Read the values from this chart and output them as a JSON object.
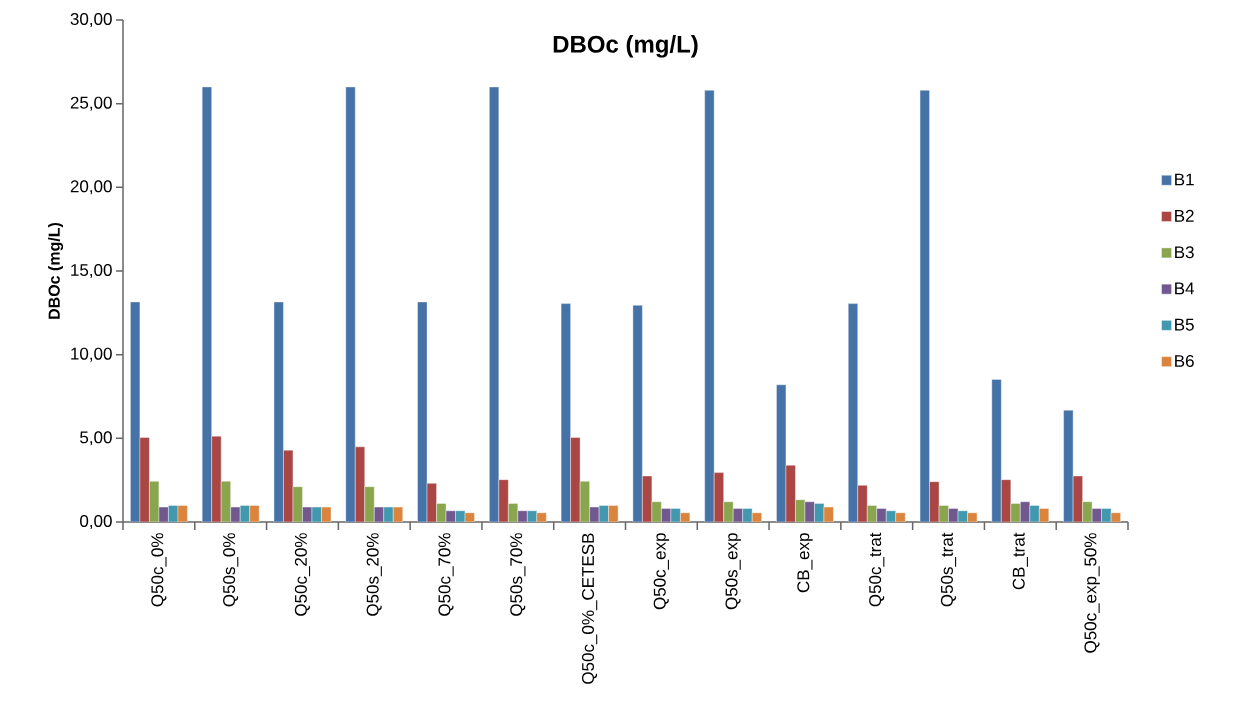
{
  "chart_data": {
    "type": "bar",
    "title": "DBOc (mg/L)",
    "ylabel": "DBOc (mg/L)",
    "categories": [
      "Q50c_0%",
      "Q50s_0%",
      "Q50c_20%",
      "Q50s_20%",
      "Q50c_70%",
      "Q50s_70%",
      "Q50c_0%_CETESB",
      "Q50c_exp",
      "Q50s_exp",
      "CB_exp",
      "Q50c_trat",
      "Q50s_trat",
      "CB_trat",
      "Q50c_exp_50%"
    ],
    "series": [
      {
        "name": "B1",
        "color": "#4572a7",
        "values": [
          13.15,
          26.0,
          13.15,
          26.0,
          13.15,
          26.0,
          13.05,
          12.95,
          25.8,
          8.2,
          13.05,
          25.8,
          8.52,
          6.68
        ]
      },
      {
        "name": "B2",
        "color": "#aa4643",
        "values": [
          5.05,
          5.13,
          4.29,
          4.49,
          2.31,
          2.53,
          5.05,
          2.75,
          2.95,
          3.39,
          2.19,
          2.41,
          2.53,
          2.75
        ]
      },
      {
        "name": "B3",
        "color": "#89a54e",
        "values": [
          2.43,
          2.43,
          2.11,
          2.11,
          1.11,
          1.11,
          2.43,
          1.21,
          1.21,
          1.33,
          0.99,
          0.99,
          1.11,
          1.21
        ]
      },
      {
        "name": "B4",
        "color": "#71588f",
        "values": [
          0.89,
          0.89,
          0.89,
          0.89,
          0.67,
          0.67,
          0.89,
          0.81,
          0.81,
          1.21,
          0.81,
          0.81,
          1.21,
          0.81
        ]
      },
      {
        "name": "B5",
        "color": "#4198af",
        "values": [
          0.99,
          0.99,
          0.89,
          0.89,
          0.67,
          0.67,
          0.99,
          0.81,
          0.81,
          1.11,
          0.67,
          0.67,
          0.99,
          0.81
        ]
      },
      {
        "name": "B6",
        "color": "#db843d",
        "values": [
          0.99,
          0.99,
          0.89,
          0.89,
          0.55,
          0.55,
          0.99,
          0.55,
          0.55,
          0.89,
          0.55,
          0.55,
          0.81,
          0.55
        ]
      }
    ],
    "ylim": [
      0,
      30
    ],
    "yticks": [
      {
        "value": 0,
        "label": "0,00"
      },
      {
        "value": 5,
        "label": "5,00"
      },
      {
        "value": 10,
        "label": "10,00"
      },
      {
        "value": 15,
        "label": "15,00"
      },
      {
        "value": 20,
        "label": "20,00"
      },
      {
        "value": 25,
        "label": "25,00"
      },
      {
        "value": 30,
        "label": "30,00"
      }
    ],
    "legend": "right"
  }
}
